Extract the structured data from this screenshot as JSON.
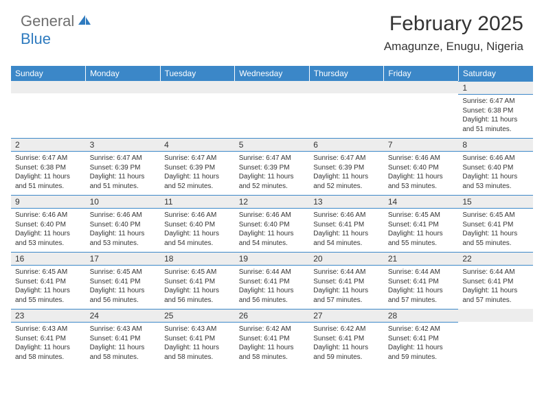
{
  "logo": {
    "text_general": "General",
    "text_blue": "Blue",
    "icon_fill": "#2f7bbf"
  },
  "header": {
    "title": "February 2025",
    "location": "Amagunze, Enugu, Nigeria"
  },
  "colors": {
    "header_bg": "#3b87c8",
    "header_fg": "#ffffff",
    "daynum_bg": "#ededed",
    "border": "#3b87c8",
    "text": "#333333"
  },
  "weekdays": [
    "Sunday",
    "Monday",
    "Tuesday",
    "Wednesday",
    "Thursday",
    "Friday",
    "Saturday"
  ],
  "weeks": [
    [
      null,
      null,
      null,
      null,
      null,
      null,
      {
        "n": "1",
        "sr": "6:47 AM",
        "ss": "6:38 PM",
        "dl": "11 hours and 51 minutes."
      }
    ],
    [
      {
        "n": "2",
        "sr": "6:47 AM",
        "ss": "6:38 PM",
        "dl": "11 hours and 51 minutes."
      },
      {
        "n": "3",
        "sr": "6:47 AM",
        "ss": "6:39 PM",
        "dl": "11 hours and 51 minutes."
      },
      {
        "n": "4",
        "sr": "6:47 AM",
        "ss": "6:39 PM",
        "dl": "11 hours and 52 minutes."
      },
      {
        "n": "5",
        "sr": "6:47 AM",
        "ss": "6:39 PM",
        "dl": "11 hours and 52 minutes."
      },
      {
        "n": "6",
        "sr": "6:47 AM",
        "ss": "6:39 PM",
        "dl": "11 hours and 52 minutes."
      },
      {
        "n": "7",
        "sr": "6:46 AM",
        "ss": "6:40 PM",
        "dl": "11 hours and 53 minutes."
      },
      {
        "n": "8",
        "sr": "6:46 AM",
        "ss": "6:40 PM",
        "dl": "11 hours and 53 minutes."
      }
    ],
    [
      {
        "n": "9",
        "sr": "6:46 AM",
        "ss": "6:40 PM",
        "dl": "11 hours and 53 minutes."
      },
      {
        "n": "10",
        "sr": "6:46 AM",
        "ss": "6:40 PM",
        "dl": "11 hours and 53 minutes."
      },
      {
        "n": "11",
        "sr": "6:46 AM",
        "ss": "6:40 PM",
        "dl": "11 hours and 54 minutes."
      },
      {
        "n": "12",
        "sr": "6:46 AM",
        "ss": "6:40 PM",
        "dl": "11 hours and 54 minutes."
      },
      {
        "n": "13",
        "sr": "6:46 AM",
        "ss": "6:41 PM",
        "dl": "11 hours and 54 minutes."
      },
      {
        "n": "14",
        "sr": "6:45 AM",
        "ss": "6:41 PM",
        "dl": "11 hours and 55 minutes."
      },
      {
        "n": "15",
        "sr": "6:45 AM",
        "ss": "6:41 PM",
        "dl": "11 hours and 55 minutes."
      }
    ],
    [
      {
        "n": "16",
        "sr": "6:45 AM",
        "ss": "6:41 PM",
        "dl": "11 hours and 55 minutes."
      },
      {
        "n": "17",
        "sr": "6:45 AM",
        "ss": "6:41 PM",
        "dl": "11 hours and 56 minutes."
      },
      {
        "n": "18",
        "sr": "6:45 AM",
        "ss": "6:41 PM",
        "dl": "11 hours and 56 minutes."
      },
      {
        "n": "19",
        "sr": "6:44 AM",
        "ss": "6:41 PM",
        "dl": "11 hours and 56 minutes."
      },
      {
        "n": "20",
        "sr": "6:44 AM",
        "ss": "6:41 PM",
        "dl": "11 hours and 57 minutes."
      },
      {
        "n": "21",
        "sr": "6:44 AM",
        "ss": "6:41 PM",
        "dl": "11 hours and 57 minutes."
      },
      {
        "n": "22",
        "sr": "6:44 AM",
        "ss": "6:41 PM",
        "dl": "11 hours and 57 minutes."
      }
    ],
    [
      {
        "n": "23",
        "sr": "6:43 AM",
        "ss": "6:41 PM",
        "dl": "11 hours and 58 minutes."
      },
      {
        "n": "24",
        "sr": "6:43 AM",
        "ss": "6:41 PM",
        "dl": "11 hours and 58 minutes."
      },
      {
        "n": "25",
        "sr": "6:43 AM",
        "ss": "6:41 PM",
        "dl": "11 hours and 58 minutes."
      },
      {
        "n": "26",
        "sr": "6:42 AM",
        "ss": "6:41 PM",
        "dl": "11 hours and 58 minutes."
      },
      {
        "n": "27",
        "sr": "6:42 AM",
        "ss": "6:41 PM",
        "dl": "11 hours and 59 minutes."
      },
      {
        "n": "28",
        "sr": "6:42 AM",
        "ss": "6:41 PM",
        "dl": "11 hours and 59 minutes."
      },
      null
    ]
  ],
  "labels": {
    "sunrise": "Sunrise: ",
    "sunset": "Sunset: ",
    "daylight": "Daylight: "
  }
}
